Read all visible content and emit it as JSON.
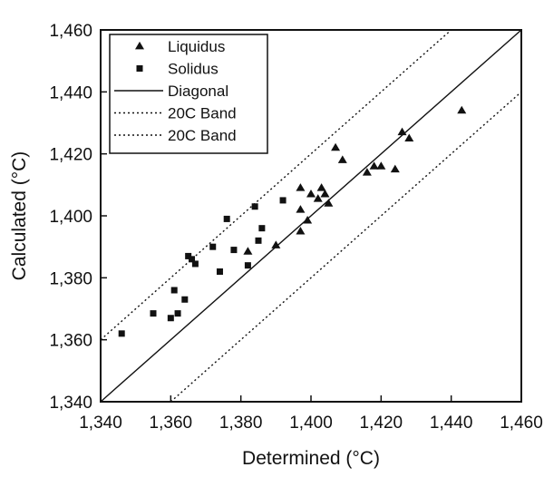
{
  "chart_data": {
    "type": "scatter",
    "xlabel": "Determined (°C)",
    "ylabel": "Calculated (°C)",
    "xlim": [
      1340,
      1460
    ],
    "ylim": [
      1340,
      1460
    ],
    "xticks": [
      1340,
      1360,
      1380,
      1400,
      1420,
      1440,
      1460
    ],
    "yticks": [
      1340,
      1360,
      1380,
      1400,
      1420,
      1440,
      1460
    ],
    "xtick_labels": [
      "1,340",
      "1,360",
      "1,380",
      "1,400",
      "1,420",
      "1,440",
      "1,460"
    ],
    "ytick_labels": [
      "1,340",
      "1,360",
      "1,380",
      "1,400",
      "1,420",
      "1,440",
      "1,460"
    ],
    "legend_position": "top-left",
    "grid": false,
    "series": [
      {
        "name": "Liquidus",
        "marker": "triangle",
        "points": [
          [
            1382,
            1388.5
          ],
          [
            1390,
            1390.5
          ],
          [
            1397,
            1395
          ],
          [
            1397,
            1402
          ],
          [
            1397,
            1409
          ],
          [
            1399,
            1398.5
          ],
          [
            1400,
            1407
          ],
          [
            1402,
            1405.5
          ],
          [
            1403,
            1409
          ],
          [
            1404,
            1407
          ],
          [
            1405,
            1404
          ],
          [
            1407,
            1422
          ],
          [
            1409,
            1418
          ],
          [
            1416,
            1414
          ],
          [
            1418,
            1416
          ],
          [
            1420,
            1416
          ],
          [
            1424,
            1415
          ],
          [
            1426,
            1427
          ],
          [
            1428,
            1425
          ],
          [
            1443,
            1434
          ]
        ]
      },
      {
        "name": "Solidus",
        "marker": "square",
        "points": [
          [
            1346,
            1362
          ],
          [
            1355,
            1368.5
          ],
          [
            1360,
            1367
          ],
          [
            1361,
            1376
          ],
          [
            1362,
            1368.5
          ],
          [
            1364,
            1373
          ],
          [
            1365,
            1387
          ],
          [
            1366,
            1386
          ],
          [
            1367,
            1384.5
          ],
          [
            1372,
            1390
          ],
          [
            1374,
            1382
          ],
          [
            1376,
            1399
          ],
          [
            1378,
            1389
          ],
          [
            1382,
            1384
          ],
          [
            1384,
            1403
          ],
          [
            1385,
            1392
          ],
          [
            1386,
            1396
          ],
          [
            1392,
            1405
          ]
        ]
      },
      {
        "name": "Diagonal",
        "style": "solid",
        "line": [
          [
            1340,
            1340
          ],
          [
            1460,
            1460
          ]
        ]
      },
      {
        "name": "20C Band",
        "style": "dotted",
        "line": [
          [
            1340,
            1360
          ],
          [
            1440,
            1460
          ]
        ]
      },
      {
        "name": "20C Band",
        "style": "dotted",
        "line": [
          [
            1360,
            1340
          ],
          [
            1460,
            1440
          ]
        ]
      }
    ],
    "colors": {
      "ink": "#111111",
      "background": "#ffffff"
    }
  }
}
